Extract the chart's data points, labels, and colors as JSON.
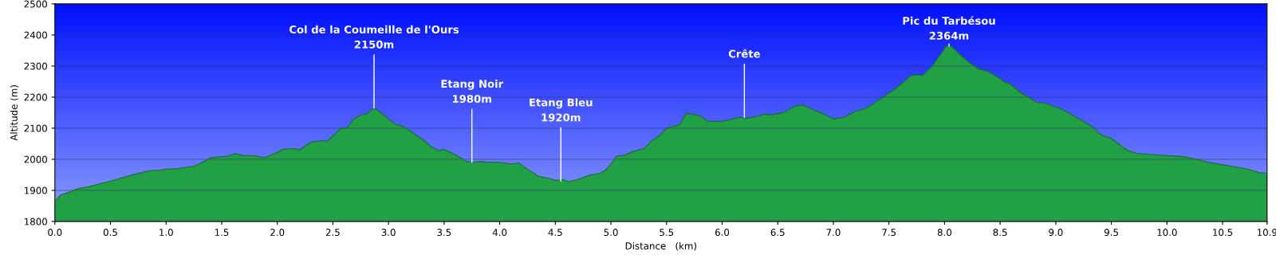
{
  "chart_data": {
    "type": "area",
    "xlabel": "Distance   (km)",
    "ylabel": "Altitude (m)",
    "x": [
      0.0,
      0.05,
      0.12,
      0.2,
      0.3,
      0.5,
      0.7,
      0.85,
      0.95,
      1.0,
      1.1,
      1.25,
      1.3,
      1.4,
      1.55,
      1.62,
      1.7,
      1.8,
      1.88,
      2.0,
      2.05,
      2.15,
      2.2,
      2.3,
      2.4,
      2.45,
      2.5,
      2.57,
      2.63,
      2.68,
      2.75,
      2.8,
      2.87,
      2.95,
      3.05,
      3.15,
      3.22,
      3.3,
      3.38,
      3.45,
      3.5,
      3.6,
      3.7,
      3.75,
      3.82,
      3.9,
      4.0,
      4.1,
      4.17,
      4.25,
      4.35,
      4.45,
      4.5,
      4.57,
      4.62,
      4.7,
      4.8,
      4.9,
      4.95,
      5.0,
      5.05,
      5.12,
      5.2,
      5.3,
      5.37,
      5.45,
      5.5,
      5.55,
      5.62,
      5.68,
      5.8,
      5.87,
      6.0,
      6.1,
      6.15,
      6.22,
      6.3,
      6.38,
      6.45,
      6.55,
      6.65,
      6.72,
      6.85,
      6.95,
      7.0,
      7.1,
      7.2,
      7.29,
      7.44,
      7.56,
      7.7,
      7.76,
      7.8,
      7.88,
      7.99,
      8.01,
      8.06,
      8.2,
      8.31,
      8.39,
      8.49,
      8.54,
      8.6,
      8.68,
      8.83,
      8.9,
      9.06,
      9.21,
      9.33,
      9.4,
      9.5,
      9.64,
      9.73,
      9.88,
      10.0,
      10.14,
      10.28,
      10.36,
      10.72,
      10.83,
      10.9
    ],
    "series": [
      {
        "color": "#22a045",
        "values": [
          1865,
          1885,
          1893,
          1905,
          1912,
          1930,
          1950,
          1963,
          1965,
          1968,
          1970,
          1978,
          1985,
          2005,
          2010,
          2018,
          2012,
          2012,
          2005,
          2022,
          2032,
          2035,
          2030,
          2055,
          2060,
          2058,
          2075,
          2100,
          2102,
          2128,
          2142,
          2145,
          2165,
          2145,
          2115,
          2102,
          2085,
          2065,
          2042,
          2028,
          2032,
          2015,
          1993,
          1990,
          1993,
          1990,
          1990,
          1985,
          1988,
          1968,
          1945,
          1938,
          1932,
          1935,
          1928,
          1935,
          1948,
          1955,
          1965,
          1985,
          2010,
          2013,
          2025,
          2035,
          2060,
          2080,
          2100,
          2105,
          2112,
          2148,
          2140,
          2122,
          2122,
          2130,
          2135,
          2132,
          2137,
          2145,
          2143,
          2150,
          2170,
          2175,
          2155,
          2140,
          2130,
          2135,
          2155,
          2164,
          2198,
          2228,
          2270,
          2272,
          2270,
          2296,
          2351,
          2364,
          2364,
          2317,
          2290,
          2283,
          2262,
          2249,
          2240,
          2215,
          2183,
          2181,
          2160,
          2130,
          2105,
          2080,
          2067,
          2029,
          2019,
          2015,
          2012,
          2009,
          1999,
          1991,
          1969,
          1957,
          1955
        ]
      }
    ],
    "xlim": [
      0.0,
      10.9
    ],
    "ylim": [
      1800,
      2500
    ],
    "xticks": [
      {
        "value": 0,
        "label": "0.0"
      },
      0.5,
      {
        "value": 1,
        "label": "1.0"
      },
      1.5,
      {
        "value": 2,
        "label": "2.0"
      },
      2.5,
      {
        "value": 3,
        "label": "3.0"
      },
      3.5,
      {
        "value": 4,
        "label": "4.0"
      },
      4.5,
      {
        "value": 5,
        "label": "5.0"
      },
      5.5,
      {
        "value": 6,
        "label": "6.0"
      },
      6.5,
      {
        "value": 7,
        "label": "7.0"
      },
      7.5,
      {
        "value": 8,
        "label": "8.0"
      },
      8.5,
      {
        "value": 9,
        "label": "9.0"
      },
      9.5,
      {
        "value": 10,
        "label": "10.0"
      },
      10.5,
      10.9
    ],
    "yticks": [
      1800,
      1900,
      2000,
      2100,
      2200,
      2300,
      2400,
      2500
    ],
    "grid": "y",
    "annotations": [
      {
        "text": "Col de la Coumeille de l'Ours\n2150m",
        "x": 2.87,
        "y": 2165
      },
      {
        "text": "Etang Noir\n1980m",
        "x": 3.75,
        "y": 1990
      },
      {
        "text": "Etang Bleu\n1920m",
        "x": 4.55,
        "y": 1930
      },
      {
        "text": "Crête",
        "x": 6.2,
        "y": 2135
      },
      {
        "text": "Pic du Tarbésou\n2364m",
        "x": 8.04,
        "y": 2364
      }
    ]
  }
}
